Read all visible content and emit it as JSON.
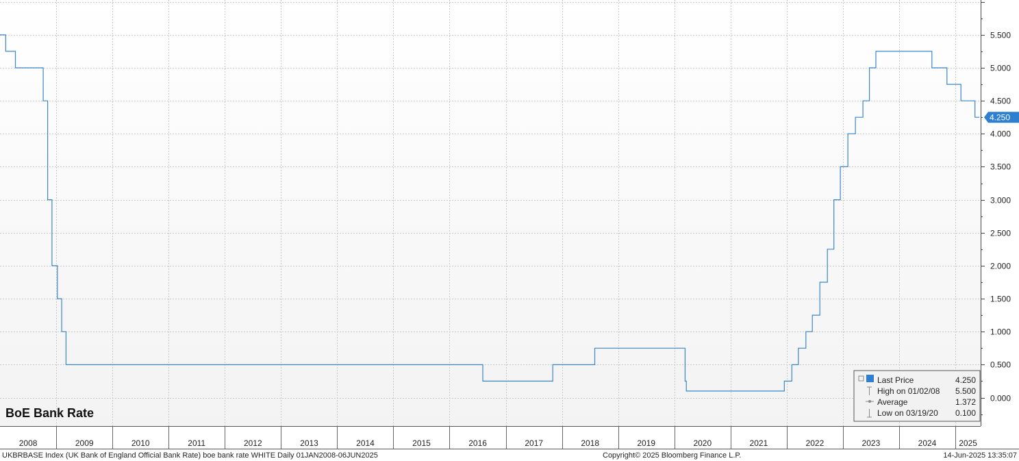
{
  "chart_data": {
    "type": "line",
    "title": "BoE Bank Rate",
    "ylim": [
      0,
      5.5
    ],
    "yticks": [
      "0.000",
      "0.500",
      "1.000",
      "1.500",
      "2.000",
      "2.500",
      "3.000",
      "3.500",
      "4.000",
      "4.500",
      "5.000",
      "5.500"
    ],
    "year_labels": [
      "2008",
      "2009",
      "2010",
      "2011",
      "2012",
      "2013",
      "2014",
      "2015",
      "2016",
      "2017",
      "2018",
      "2019",
      "2020",
      "2021",
      "2022",
      "2023",
      "2024",
      "2025"
    ],
    "x_range": [
      "2008-01-01",
      "2025-06-14"
    ],
    "grid": true,
    "line_color": "#3a86c8",
    "series": [
      {
        "points": [
          [
            "2008-01-01",
            5.5
          ],
          [
            "2008-02-07",
            5.25
          ],
          [
            "2008-04-10",
            5.0
          ],
          [
            "2008-10-08",
            4.5
          ],
          [
            "2008-11-06",
            3.0
          ],
          [
            "2008-12-04",
            2.0
          ],
          [
            "2009-01-08",
            1.5
          ],
          [
            "2009-02-05",
            1.0
          ],
          [
            "2009-03-05",
            0.5
          ],
          [
            "2016-08-04",
            0.25
          ],
          [
            "2017-11-02",
            0.5
          ],
          [
            "2018-08-02",
            0.75
          ],
          [
            "2020-03-11",
            0.25
          ],
          [
            "2020-03-19",
            0.1
          ],
          [
            "2021-12-16",
            0.25
          ],
          [
            "2022-02-03",
            0.5
          ],
          [
            "2022-03-17",
            0.75
          ],
          [
            "2022-05-05",
            1.0
          ],
          [
            "2022-06-16",
            1.25
          ],
          [
            "2022-08-04",
            1.75
          ],
          [
            "2022-09-22",
            2.25
          ],
          [
            "2022-11-03",
            3.0
          ],
          [
            "2022-12-15",
            3.5
          ],
          [
            "2023-02-02",
            4.0
          ],
          [
            "2023-03-23",
            4.25
          ],
          [
            "2023-05-11",
            4.5
          ],
          [
            "2023-06-22",
            5.0
          ],
          [
            "2023-08-03",
            5.25
          ],
          [
            "2024-08-01",
            5.0
          ],
          [
            "2024-11-07",
            4.75
          ],
          [
            "2025-02-06",
            4.5
          ],
          [
            "2025-05-08",
            4.25
          ],
          [
            "2025-06-06",
            4.25
          ]
        ]
      }
    ],
    "last_price": "4.250",
    "legend": {
      "rows": [
        {
          "label": "Last Price",
          "value": "4.250"
        },
        {
          "label": "High on 01/02/08",
          "value": "5.500"
        },
        {
          "label": "Average",
          "value": "1.372"
        },
        {
          "label": "Low on 03/19/20",
          "value": "0.100"
        }
      ]
    }
  },
  "footer": {
    "description": "UKBRBASE Index (UK Bank of England Official Bank Rate) boe bank rate WHITE  Daily 01JAN2008-06JUN2025",
    "copyright": "Copyright© 2025 Bloomberg Finance L.P.",
    "timestamp": "14-Jun-2025 13:35:07"
  }
}
